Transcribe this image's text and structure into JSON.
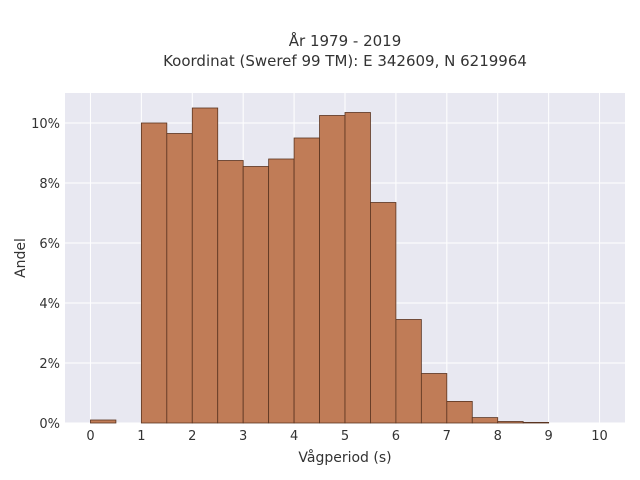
{
  "chart_data": {
    "type": "bar",
    "title": "År 1979 - 2019",
    "subtitle": "Koordinat (Sweref 99 TM): E 342609, N 6219964",
    "xlabel": "Vågperiod (s)",
    "ylabel": "Andel",
    "bin_width": 0.5,
    "bins": [
      {
        "x0": 0.0,
        "value": 0.1
      },
      {
        "x0": 0.5,
        "value": 0.0
      },
      {
        "x0": 1.0,
        "value": 10.0
      },
      {
        "x0": 1.5,
        "value": 9.65
      },
      {
        "x0": 2.0,
        "value": 10.5
      },
      {
        "x0": 2.5,
        "value": 8.75
      },
      {
        "x0": 3.0,
        "value": 8.55
      },
      {
        "x0": 3.5,
        "value": 8.8
      },
      {
        "x0": 4.0,
        "value": 9.5
      },
      {
        "x0": 4.5,
        "value": 10.25
      },
      {
        "x0": 5.0,
        "value": 10.35
      },
      {
        "x0": 5.5,
        "value": 7.35
      },
      {
        "x0": 6.0,
        "value": 3.45
      },
      {
        "x0": 6.5,
        "value": 1.65
      },
      {
        "x0": 7.0,
        "value": 0.72
      },
      {
        "x0": 7.5,
        "value": 0.18
      },
      {
        "x0": 8.0,
        "value": 0.05
      },
      {
        "x0": 8.5,
        "value": 0.02
      },
      {
        "x0": 9.0,
        "value": 0.0
      },
      {
        "x0": 9.5,
        "value": 0.0
      }
    ],
    "xlim": [
      -0.5,
      10.5
    ],
    "ylim": [
      0,
      11
    ],
    "xticks": [
      0,
      1,
      2,
      3,
      4,
      5,
      6,
      7,
      8,
      9,
      10
    ],
    "xtick_labels": [
      "0",
      "1",
      "2",
      "3",
      "4",
      "5",
      "6",
      "7",
      "8",
      "9",
      "10"
    ],
    "yticks": [
      0,
      2,
      4,
      6,
      8,
      10
    ],
    "ytick_labels": [
      "0%",
      "2%",
      "4%",
      "6%",
      "8%",
      "10%"
    ],
    "grid": true,
    "colors": {
      "bar_fill": "#c07c57",
      "bar_stroke": "#5a3420",
      "plot_bg": "#e8e8f1",
      "grid": "#ffffff"
    }
  }
}
